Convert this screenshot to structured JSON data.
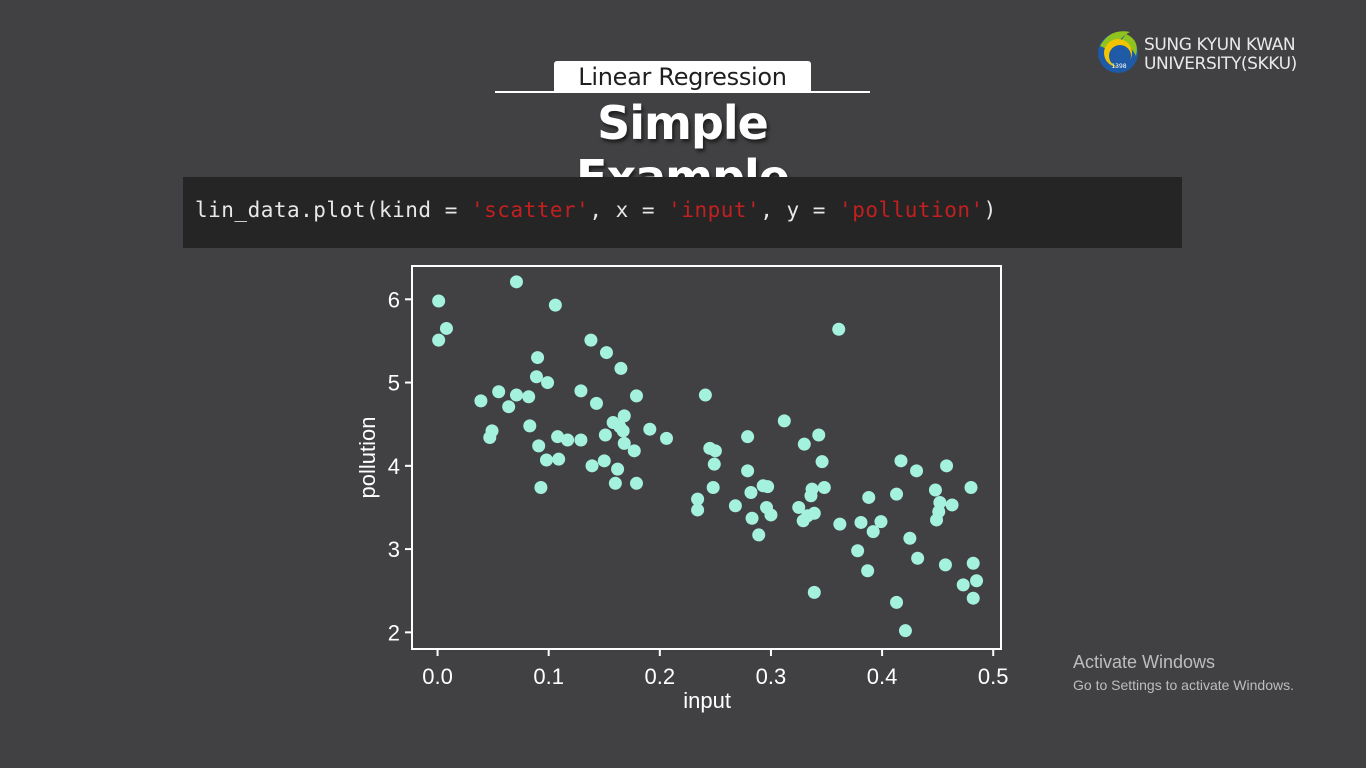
{
  "logo": {
    "line1": "SUNG KYUN KWAN",
    "line2": "UNIVERSITY(SKKU)",
    "seal_text": "1398",
    "colors": {
      "green": "#8fc31f",
      "blue": "#1f5aa6",
      "yellow": "#f2c500"
    }
  },
  "title": {
    "tab": "Linear Regression",
    "main": "Simple Example"
  },
  "code": {
    "segments": [
      {
        "text": "lin_data.plot(kind = ",
        "kind": "plain"
      },
      {
        "text": "'scatter'",
        "kind": "string"
      },
      {
        "text": ", x = ",
        "kind": "plain"
      },
      {
        "text": "'input'",
        "kind": "string"
      },
      {
        "text": ", y = ",
        "kind": "plain"
      },
      {
        "text": "'pollution'",
        "kind": "string"
      },
      {
        "text": ")",
        "kind": "plain"
      }
    ]
  },
  "chart_data": {
    "type": "scatter",
    "xlabel": "input",
    "ylabel": "pollution",
    "xlim": [
      -0.023,
      0.507
    ],
    "ylim": [
      1.8,
      6.4
    ],
    "xticks": [
      0.0,
      0.1,
      0.2,
      0.3,
      0.4,
      0.5
    ],
    "xtick_labels": [
      "0.0",
      "0.1",
      "0.2",
      "0.3",
      "0.4",
      "0.5"
    ],
    "yticks": [
      2,
      3,
      4,
      5,
      6
    ],
    "ytick_labels": [
      "2",
      "3",
      "4",
      "5",
      "6"
    ],
    "grid": false,
    "point_color": "#a4f1dd",
    "frame_color": "#ffffff",
    "points": [
      [
        0.001,
        5.98
      ],
      [
        0.001,
        5.51
      ],
      [
        0.008,
        5.65
      ],
      [
        0.039,
        4.78
      ],
      [
        0.047,
        4.34
      ],
      [
        0.049,
        4.42
      ],
      [
        0.055,
        4.89
      ],
      [
        0.064,
        4.71
      ],
      [
        0.071,
        6.21
      ],
      [
        0.071,
        4.85
      ],
      [
        0.082,
        4.83
      ],
      [
        0.083,
        4.48
      ],
      [
        0.089,
        5.07
      ],
      [
        0.09,
        5.3
      ],
      [
        0.091,
        4.24
      ],
      [
        0.093,
        3.74
      ],
      [
        0.098,
        4.07
      ],
      [
        0.099,
        5.0
      ],
      [
        0.106,
        5.93
      ],
      [
        0.108,
        4.35
      ],
      [
        0.109,
        4.08
      ],
      [
        0.117,
        4.31
      ],
      [
        0.129,
        4.9
      ],
      [
        0.129,
        4.31
      ],
      [
        0.138,
        5.51
      ],
      [
        0.139,
        4.0
      ],
      [
        0.143,
        4.75
      ],
      [
        0.15,
        4.06
      ],
      [
        0.151,
        4.37
      ],
      [
        0.152,
        5.36
      ],
      [
        0.158,
        4.52
      ],
      [
        0.16,
        3.79
      ],
      [
        0.162,
        3.96
      ],
      [
        0.164,
        4.47
      ],
      [
        0.165,
        5.17
      ],
      [
        0.167,
        4.42
      ],
      [
        0.168,
        4.27
      ],
      [
        0.168,
        4.6
      ],
      [
        0.177,
        4.18
      ],
      [
        0.179,
        4.84
      ],
      [
        0.179,
        3.79
      ],
      [
        0.191,
        4.44
      ],
      [
        0.206,
        4.33
      ],
      [
        0.234,
        3.6
      ],
      [
        0.234,
        3.47
      ],
      [
        0.241,
        4.85
      ],
      [
        0.245,
        4.21
      ],
      [
        0.248,
        3.74
      ],
      [
        0.249,
        4.02
      ],
      [
        0.25,
        4.18
      ],
      [
        0.268,
        3.52
      ],
      [
        0.279,
        4.35
      ],
      [
        0.279,
        3.94
      ],
      [
        0.282,
        3.68
      ],
      [
        0.283,
        3.37
      ],
      [
        0.289,
        3.17
      ],
      [
        0.293,
        3.76
      ],
      [
        0.296,
        3.5
      ],
      [
        0.297,
        3.75
      ],
      [
        0.3,
        3.41
      ],
      [
        0.312,
        4.54
      ],
      [
        0.325,
        3.5
      ],
      [
        0.329,
        3.34
      ],
      [
        0.33,
        4.26
      ],
      [
        0.333,
        3.4
      ],
      [
        0.336,
        3.64
      ],
      [
        0.337,
        3.72
      ],
      [
        0.339,
        3.43
      ],
      [
        0.339,
        2.48
      ],
      [
        0.343,
        4.37
      ],
      [
        0.346,
        4.05
      ],
      [
        0.348,
        3.74
      ],
      [
        0.361,
        5.64
      ],
      [
        0.362,
        3.3
      ],
      [
        0.378,
        2.98
      ],
      [
        0.381,
        3.32
      ],
      [
        0.388,
        3.62
      ],
      [
        0.387,
        2.74
      ],
      [
        0.392,
        3.21
      ],
      [
        0.399,
        3.33
      ],
      [
        0.413,
        3.66
      ],
      [
        0.413,
        2.36
      ],
      [
        0.417,
        4.06
      ],
      [
        0.421,
        2.02
      ],
      [
        0.425,
        3.13
      ],
      [
        0.431,
        3.94
      ],
      [
        0.432,
        2.89
      ],
      [
        0.448,
        3.71
      ],
      [
        0.449,
        3.35
      ],
      [
        0.451,
        3.45
      ],
      [
        0.452,
        3.56
      ],
      [
        0.457,
        2.81
      ],
      [
        0.458,
        4.0
      ],
      [
        0.463,
        3.53
      ],
      [
        0.473,
        2.57
      ],
      [
        0.48,
        3.74
      ],
      [
        0.482,
        2.41
      ],
      [
        0.482,
        2.83
      ],
      [
        0.485,
        2.62
      ]
    ]
  },
  "watermark": {
    "title": "Activate Windows",
    "subtitle": "Go to Settings to activate Windows."
  }
}
